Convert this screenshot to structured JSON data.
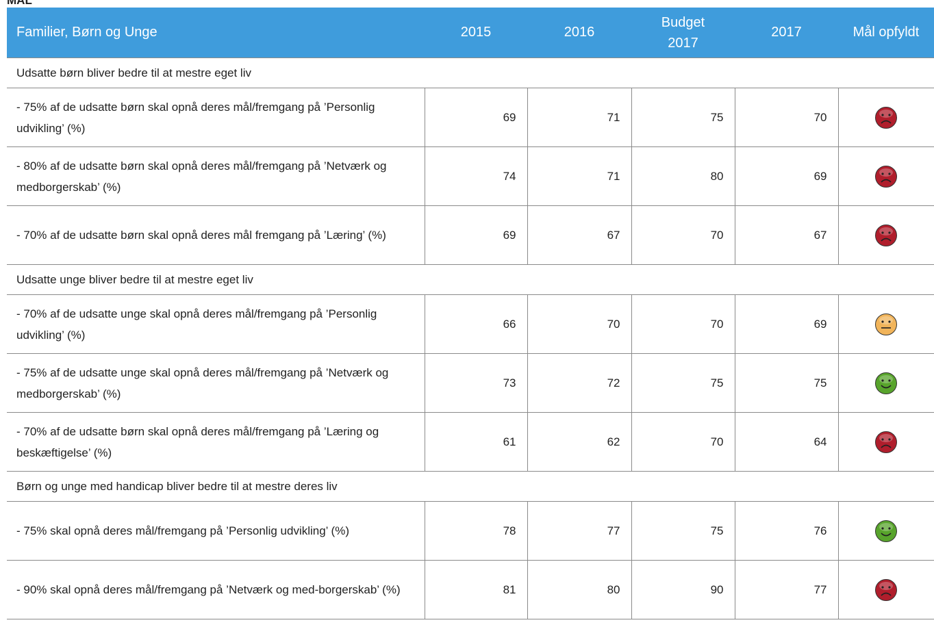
{
  "title": "MÅL",
  "table": {
    "columns": [
      "Familier, Børn og Unge",
      "2015",
      "2016",
      "Budget 2017",
      "2017",
      "Mål opfyldt"
    ],
    "icon_colors": {
      "sad": "#b01e2c",
      "neutral": "#f1b45a",
      "happy": "#58a42c"
    },
    "sections": [
      {
        "title": "Udsatte børn bliver bedre til at mestre eget liv",
        "rows": [
          {
            "label": "- 75% af de udsatte børn skal opnå deres mål/fremgang på ’Personlig udvikling’ (%)",
            "values": [
              69,
              71,
              75,
              70
            ],
            "icon": "sad"
          },
          {
            "label": "- 80% af de udsatte børn skal opnå deres mål/fremgang på ’Netværk og medborgerskab’ (%)",
            "values": [
              74,
              71,
              80,
              69
            ],
            "icon": "sad"
          },
          {
            "label": "- 70% af de udsatte børn skal opnå deres mål fremgang på ’Læring’ (%)",
            "values": [
              69,
              67,
              70,
              67
            ],
            "icon": "sad"
          }
        ]
      },
      {
        "title": "Udsatte unge bliver bedre til at mestre eget liv",
        "rows": [
          {
            "label": "- 70% af de udsatte unge skal opnå deres mål/fremgang på ’Personlig udvikling’ (%)",
            "values": [
              66,
              70,
              70,
              69
            ],
            "icon": "neutral"
          },
          {
            "label": "- 75% af de udsatte unge skal opnå deres mål/fremgang på ’Netværk og medborgerskab’ (%)",
            "values": [
              73,
              72,
              75,
              75
            ],
            "icon": "happy"
          },
          {
            "label": "- 70% af de udsatte børn skal opnå deres mål/fremgang på ’Læring og beskæftigelse’ (%)",
            "values": [
              61,
              62,
              70,
              64
            ],
            "icon": "sad"
          }
        ]
      },
      {
        "title": "Børn og unge med handicap bliver bedre til at mestre deres liv",
        "rows": [
          {
            "label": "- 75% skal opnå deres mål/fremgang på ’Personlig udvikling’ (%)",
            "values": [
              78,
              77,
              75,
              76
            ],
            "icon": "happy"
          },
          {
            "label": "- 90% skal opnå deres mål/fremgang på ’Netværk og med-borgerskab’ (%)",
            "values": [
              81,
              80,
              90,
              77
            ],
            "icon": "sad"
          }
        ]
      }
    ]
  }
}
